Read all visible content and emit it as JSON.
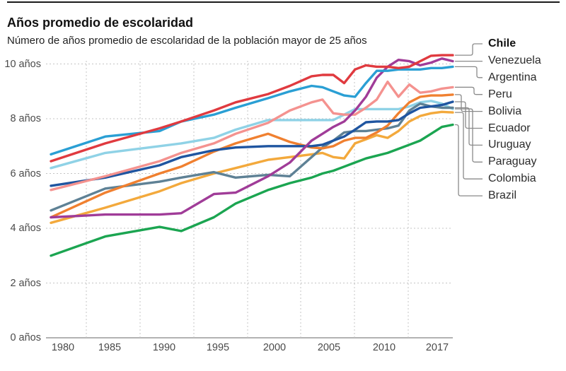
{
  "header": {
    "title": "Años promedio de escolaridad",
    "subtitle": "Número de años promedio de escolaridad de la población mayor de 25 años"
  },
  "chart_data": {
    "type": "line",
    "title": "Años promedio de escolaridad",
    "subtitle": "Número de años promedio de escolaridad de la población mayor de 25 años",
    "unit": "años",
    "xlabel": "",
    "ylabel": "años",
    "ylim": [
      0,
      10.8
    ],
    "grid": "dashed",
    "legend_position": "right",
    "x_ticks": [
      "1980",
      "1985",
      "1990",
      "1995",
      "2000",
      "2005",
      "2010",
      "2017"
    ],
    "y_ticks": [
      "0 años",
      "2 años",
      "4 años",
      "6 años",
      "8 años",
      "10 años"
    ],
    "years": [
      1980,
      1985,
      1990,
      1992,
      1995,
      1997,
      2000,
      2002,
      2004,
      2005,
      2006,
      2007,
      2008,
      2009,
      2010,
      2011,
      2012,
      2013,
      2014,
      2015,
      2016,
      2017
    ],
    "series": [
      {
        "name": "Chile",
        "bold": true,
        "color": "#e03a3f",
        "values": [
          6.45,
          7.1,
          7.65,
          7.9,
          8.3,
          8.6,
          8.9,
          9.2,
          9.55,
          9.6,
          9.6,
          9.3,
          9.8,
          9.95,
          9.9,
          9.9,
          9.85,
          9.9,
          10.1,
          10.3,
          10.32,
          10.32
        ]
      },
      {
        "name": "Venezuela",
        "bold": false,
        "color": "#a03c98",
        "values": [
          4.4,
          4.5,
          4.5,
          4.55,
          5.25,
          5.3,
          5.9,
          6.4,
          7.2,
          7.45,
          7.7,
          7.9,
          8.3,
          8.8,
          9.5,
          9.9,
          10.15,
          10.1,
          9.95,
          10.05,
          10.2,
          10.1
        ]
      },
      {
        "name": "Argentina",
        "bold": false,
        "color": "#2a9fd4",
        "values": [
          6.7,
          7.35,
          7.55,
          7.9,
          8.15,
          8.4,
          8.75,
          9.0,
          9.2,
          9.15,
          9.0,
          8.85,
          8.8,
          9.3,
          9.75,
          9.75,
          9.8,
          9.8,
          9.8,
          9.85,
          9.85,
          9.9
        ]
      },
      {
        "name": "Peru",
        "bold": false,
        "color": "#f4928f",
        "values": [
          5.4,
          5.9,
          6.45,
          6.75,
          7.1,
          7.45,
          7.85,
          8.3,
          8.6,
          8.7,
          8.2,
          8.15,
          8.15,
          8.4,
          8.7,
          9.35,
          8.8,
          9.25,
          8.95,
          9.0,
          9.1,
          9.15
        ]
      },
      {
        "name": "Bolivia",
        "bold": false,
        "color": "#f08030",
        "values": [
          4.4,
          5.3,
          6.0,
          6.25,
          6.8,
          7.1,
          7.45,
          7.15,
          6.95,
          6.92,
          7.0,
          7.2,
          7.3,
          7.3,
          7.5,
          7.75,
          8.2,
          8.6,
          8.8,
          8.85,
          8.85,
          8.88
        ]
      },
      {
        "name": "Ecuador",
        "bold": false,
        "color": "#1f55a0",
        "values": [
          5.55,
          5.85,
          6.3,
          6.6,
          6.85,
          6.95,
          7.0,
          7.0,
          7.0,
          7.05,
          7.2,
          7.35,
          7.6,
          7.87,
          7.9,
          7.9,
          7.95,
          8.2,
          8.4,
          8.45,
          8.5,
          8.62
        ]
      },
      {
        "name": "Uruguay",
        "bold": false,
        "color": "#5e8195",
        "values": [
          4.65,
          5.45,
          5.7,
          5.85,
          6.05,
          5.85,
          5.95,
          5.9,
          6.6,
          6.95,
          7.2,
          7.5,
          7.55,
          7.55,
          7.6,
          7.65,
          7.75,
          8.3,
          8.55,
          8.45,
          8.4,
          8.4
        ]
      },
      {
        "name": "Paraguay",
        "bold": false,
        "color": "#8fd2e6",
        "values": [
          6.2,
          6.75,
          7.0,
          7.1,
          7.3,
          7.6,
          7.95,
          7.95,
          7.95,
          7.95,
          7.95,
          8.15,
          8.35,
          8.35,
          8.35,
          8.35,
          8.35,
          8.45,
          8.6,
          8.65,
          8.55,
          8.36
        ]
      },
      {
        "name": "Colombia",
        "bold": false,
        "color": "#f3a93c",
        "values": [
          4.2,
          4.75,
          5.35,
          5.65,
          6.0,
          6.2,
          6.5,
          6.6,
          6.7,
          6.75,
          6.6,
          6.55,
          7.1,
          7.25,
          7.4,
          7.3,
          7.55,
          7.9,
          8.1,
          8.2,
          8.25,
          8.23
        ]
      },
      {
        "name": "Brazil",
        "bold": false,
        "color": "#1ba551",
        "values": [
          3.0,
          3.7,
          4.05,
          3.9,
          4.4,
          4.9,
          5.4,
          5.65,
          5.85,
          6.0,
          6.1,
          6.25,
          6.4,
          6.55,
          6.65,
          6.75,
          6.9,
          7.05,
          7.2,
          7.45,
          7.7,
          7.78
        ]
      }
    ]
  }
}
